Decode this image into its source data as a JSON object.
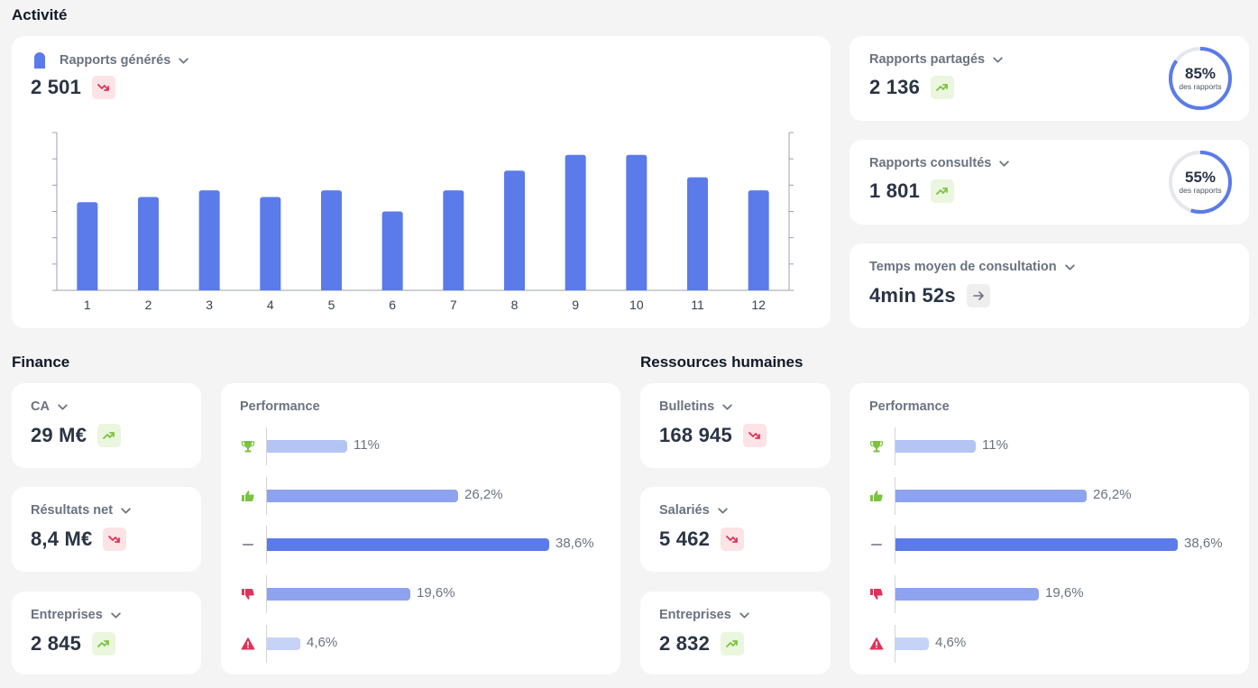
{
  "activity": {
    "title": "Activité",
    "reports_generated": {
      "label": "Rapports générés",
      "value": "2 501",
      "trend": "down",
      "chart_data": {
        "type": "bar",
        "categories": [
          "1",
          "2",
          "3",
          "4",
          "5",
          "6",
          "7",
          "8",
          "9",
          "10",
          "11",
          "12"
        ],
        "values": [
          6.7,
          7.1,
          7.6,
          7.1,
          7.6,
          6.0,
          7.6,
          9.1,
          10.3,
          10.3,
          8.6,
          7.6
        ],
        "ylim": [
          0,
          12
        ],
        "grid": false,
        "color": "#5b7bea"
      }
    },
    "reports_shared": {
      "label": "Rapports partagés",
      "value": "2 136",
      "trend": "up",
      "ring_value": 85,
      "ring_pct": "85%",
      "ring_sub": "des rapports"
    },
    "reports_viewed": {
      "label": "Rapports consultés",
      "value": "1 801",
      "trend": "up",
      "ring_value": 55,
      "ring_pct": "55%",
      "ring_sub": "des rapports"
    },
    "avg_time": {
      "label": "Temps moyen de consultation",
      "value": "4min 52s",
      "trend": "flat"
    }
  },
  "finance": {
    "title": "Finance",
    "ca": {
      "label": "CA",
      "value": "29 M€",
      "trend": "up"
    },
    "net": {
      "label": "Résultats net",
      "value": "8,4 M€",
      "trend": "down"
    },
    "companies": {
      "label": "Entreprises",
      "value": "2 845",
      "trend": "up"
    },
    "performance": {
      "title": "Performance",
      "rows": [
        {
          "icon": "trophy-icon",
          "value": 11,
          "label": "11%"
        },
        {
          "icon": "thumbs-up-icon",
          "value": 26.2,
          "label": "26,2%"
        },
        {
          "icon": "dash-icon",
          "value": 38.6,
          "label": "38,6%"
        },
        {
          "icon": "thumbs-down-icon",
          "value": 19.6,
          "label": "19,6%"
        },
        {
          "icon": "warning-icon",
          "value": 4.6,
          "label": "4,6%"
        }
      ]
    }
  },
  "hr": {
    "title": "Ressources humaines",
    "payslips": {
      "label": "Bulletins",
      "value": "168 945",
      "trend": "down"
    },
    "employees": {
      "label": "Salariés",
      "value": "5 462",
      "trend": "down"
    },
    "companies": {
      "label": "Entreprises",
      "value": "2 832",
      "trend": "up"
    },
    "performance": {
      "title": "Performance",
      "rows": [
        {
          "icon": "trophy-icon",
          "value": 11,
          "label": "11%"
        },
        {
          "icon": "thumbs-up-icon",
          "value": 26.2,
          "label": "26,2%"
        },
        {
          "icon": "dash-icon",
          "value": 38.6,
          "label": "38,6%"
        },
        {
          "icon": "thumbs-down-icon",
          "value": 19.6,
          "label": "19,6%"
        },
        {
          "icon": "warning-icon",
          "value": 4.6,
          "label": "4,6%"
        }
      ]
    }
  },
  "colors": {
    "accent": "#5b7bea",
    "up": "#7cc242",
    "down": "#e0325b",
    "perf_levels": [
      "#b4c4f4",
      "#8da3f0",
      "#5b7bea",
      "#8da3f0",
      "#c6d2f6"
    ]
  }
}
